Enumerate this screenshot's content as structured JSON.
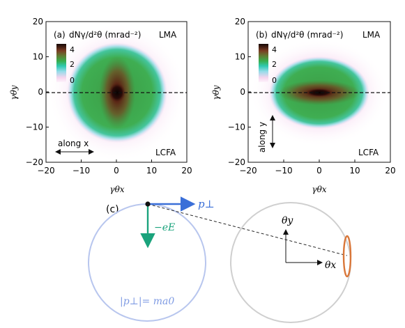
{
  "chart_data": [
    {
      "type": "heatmap",
      "panel_label": "(a)",
      "quantity_label": "dNγ/d²θ (mrad⁻²)",
      "regime_top": "LMA",
      "regime_bottom": "LCFA",
      "direction_label": "along x",
      "xlabel": "γθx",
      "ylabel": "γθy",
      "xlim": [
        -20,
        20
      ],
      "ylim": [
        -20,
        20
      ],
      "xticks": [
        -20,
        -10,
        0,
        10,
        20
      ],
      "yticks": [
        -20,
        -10,
        0,
        10,
        20
      ],
      "colorbar_ticks": [
        0,
        2,
        4
      ],
      "colorbar_range": [
        0,
        4
      ],
      "dashed_line_y": 0,
      "distribution": {
        "shape": "circular",
        "radius": 11,
        "peak": 4.2,
        "peak_location": [
          0,
          0
        ]
      }
    },
    {
      "type": "heatmap",
      "panel_label": "(b)",
      "quantity_label": "dNγ/d²θ (mrad⁻²)",
      "regime_top": "LMA",
      "regime_bottom": "LCFA",
      "direction_label": "along y",
      "xlabel": "γθx",
      "ylabel": "γθy",
      "xlim": [
        -20,
        20
      ],
      "ylim": [
        -20,
        20
      ],
      "xticks": [
        -20,
        -10,
        0,
        10,
        20
      ],
      "yticks": [
        -20,
        -10,
        0,
        10,
        20
      ],
      "colorbar_ticks": [
        0,
        2,
        4
      ],
      "colorbar_range": [
        0,
        4
      ],
      "dashed_line_y": 0,
      "distribution": {
        "shape": "elliptical",
        "radius_x": 12,
        "radius_y": 7.5,
        "peak": 4.2,
        "peak_location": [
          0,
          0
        ]
      }
    }
  ],
  "diagram": {
    "panel_label": "(c)",
    "p_perp_label": "p⊥",
    "field_label": "−eE",
    "momentum_condition": "|p⊥|= ma0",
    "theta_y_label": "θy",
    "theta_x_label": "θx",
    "colors": {
      "momentum_circle": "#b8c6ee",
      "p_arrow": "#3a6fd8",
      "field_arrow": "#1aa37c",
      "detector_circle": "#cfcfcf",
      "emission_spot": "#d9773a"
    }
  }
}
